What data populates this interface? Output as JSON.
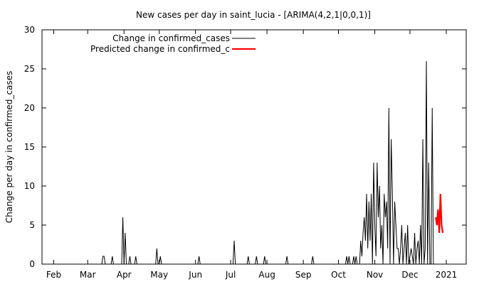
{
  "chart_data": {
    "type": "line",
    "title": "New cases per day in saint_lucia -  [ARIMA(4,2,1|0,0,1)]",
    "xlabel": "",
    "ylabel": "Change per day in confirmed_cases",
    "xlim": [
      "2020-01-22",
      "2021-01-18"
    ],
    "ylim": [
      0,
      30
    ],
    "y_ticks": [
      0,
      5,
      10,
      15,
      20,
      25,
      30
    ],
    "x_ticks": [
      {
        "date": "2020-02-01",
        "label": "Feb"
      },
      {
        "date": "2020-03-01",
        "label": "Mar"
      },
      {
        "date": "2020-04-01",
        "label": "Apr"
      },
      {
        "date": "2020-05-01",
        "label": "May"
      },
      {
        "date": "2020-06-01",
        "label": "Jun"
      },
      {
        "date": "2020-07-01",
        "label": "Jul"
      },
      {
        "date": "2020-08-01",
        "label": "Aug"
      },
      {
        "date": "2020-09-01",
        "label": "Sep"
      },
      {
        "date": "2020-10-01",
        "label": "Oct"
      },
      {
        "date": "2020-11-01",
        "label": "Nov"
      },
      {
        "date": "2020-12-01",
        "label": "Dec"
      },
      {
        "date": "2021-01-01",
        "label": "2021"
      }
    ],
    "grid": false,
    "legend_position": "top-left",
    "series": [
      {
        "name": "Change in confirmed_cases",
        "color": "#000000",
        "points": [
          [
            "2020-03-13",
            0
          ],
          [
            "2020-03-14",
            1
          ],
          [
            "2020-03-15",
            1
          ],
          [
            "2020-03-16",
            0
          ],
          [
            "2020-03-21",
            0
          ],
          [
            "2020-03-22",
            1
          ],
          [
            "2020-03-23",
            0
          ],
          [
            "2020-03-30",
            0
          ],
          [
            "2020-03-31",
            6
          ],
          [
            "2020-04-01",
            0
          ],
          [
            "2020-04-02",
            4
          ],
          [
            "2020-04-03",
            0
          ],
          [
            "2020-04-05",
            0
          ],
          [
            "2020-04-06",
            1
          ],
          [
            "2020-04-07",
            0
          ],
          [
            "2020-04-10",
            0
          ],
          [
            "2020-04-11",
            1
          ],
          [
            "2020-04-12",
            0
          ],
          [
            "2020-04-28",
            0
          ],
          [
            "2020-04-29",
            2
          ],
          [
            "2020-04-30",
            0
          ],
          [
            "2020-05-01",
            0
          ],
          [
            "2020-05-02",
            1
          ],
          [
            "2020-05-03",
            0
          ],
          [
            "2020-06-03",
            0
          ],
          [
            "2020-06-04",
            1
          ],
          [
            "2020-06-05",
            0
          ],
          [
            "2020-07-03",
            0
          ],
          [
            "2020-07-04",
            3
          ],
          [
            "2020-07-05",
            0
          ],
          [
            "2020-07-15",
            0
          ],
          [
            "2020-07-16",
            1
          ],
          [
            "2020-07-17",
            0
          ],
          [
            "2020-07-22",
            0
          ],
          [
            "2020-07-23",
            1
          ],
          [
            "2020-07-24",
            0
          ],
          [
            "2020-07-29",
            0
          ],
          [
            "2020-07-30",
            1
          ],
          [
            "2020-07-31",
            0
          ],
          [
            "2020-08-17",
            0
          ],
          [
            "2020-08-18",
            1
          ],
          [
            "2020-08-19",
            0
          ],
          [
            "2020-09-08",
            0
          ],
          [
            "2020-09-09",
            1
          ],
          [
            "2020-09-10",
            0
          ],
          [
            "2020-10-07",
            0
          ],
          [
            "2020-10-08",
            1
          ],
          [
            "2020-10-09",
            0
          ],
          [
            "2020-10-10",
            1
          ],
          [
            "2020-10-11",
            0
          ],
          [
            "2020-10-13",
            0
          ],
          [
            "2020-10-14",
            1
          ],
          [
            "2020-10-15",
            0
          ],
          [
            "2020-10-16",
            1
          ],
          [
            "2020-10-17",
            0
          ],
          [
            "2020-10-19",
            0
          ],
          [
            "2020-10-20",
            3
          ],
          [
            "2020-10-21",
            1
          ],
          [
            "2020-10-22",
            4
          ],
          [
            "2020-10-23",
            6
          ],
          [
            "2020-10-24",
            3
          ],
          [
            "2020-10-25",
            9
          ],
          [
            "2020-10-26",
            2
          ],
          [
            "2020-10-27",
            8
          ],
          [
            "2020-10-28",
            3
          ],
          [
            "2020-10-29",
            9
          ],
          [
            "2020-10-30",
            0
          ],
          [
            "2020-10-31",
            13
          ],
          [
            "2020-11-01",
            5
          ],
          [
            "2020-11-02",
            1
          ],
          [
            "2020-11-03",
            13
          ],
          [
            "2020-11-04",
            6
          ],
          [
            "2020-11-05",
            10
          ],
          [
            "2020-11-06",
            2
          ],
          [
            "2020-11-07",
            5
          ],
          [
            "2020-11-08",
            0
          ],
          [
            "2020-11-09",
            9
          ],
          [
            "2020-11-10",
            6
          ],
          [
            "2020-11-11",
            8
          ],
          [
            "2020-11-12",
            2
          ],
          [
            "2020-11-13",
            20
          ],
          [
            "2020-11-14",
            0
          ],
          [
            "2020-11-15",
            16
          ],
          [
            "2020-11-16",
            9
          ],
          [
            "2020-11-17",
            0
          ],
          [
            "2020-11-18",
            8
          ],
          [
            "2020-11-19",
            5
          ],
          [
            "2020-11-20",
            2
          ],
          [
            "2020-11-21",
            2
          ],
          [
            "2020-11-22",
            0
          ],
          [
            "2020-11-23",
            2
          ],
          [
            "2020-11-24",
            5
          ],
          [
            "2020-11-25",
            0
          ],
          [
            "2020-11-26",
            2
          ],
          [
            "2020-11-27",
            4
          ],
          [
            "2020-11-28",
            0
          ],
          [
            "2020-11-29",
            5
          ],
          [
            "2020-11-30",
            0
          ],
          [
            "2020-12-01",
            1
          ],
          [
            "2020-12-02",
            2
          ],
          [
            "2020-12-03",
            1
          ],
          [
            "2020-12-04",
            0
          ],
          [
            "2020-12-05",
            4
          ],
          [
            "2020-12-06",
            0
          ],
          [
            "2020-12-07",
            2
          ],
          [
            "2020-12-08",
            3
          ],
          [
            "2020-12-09",
            0
          ],
          [
            "2020-12-10",
            5
          ],
          [
            "2020-12-11",
            0
          ],
          [
            "2020-12-12",
            16
          ],
          [
            "2020-12-13",
            0
          ],
          [
            "2020-12-14",
            2
          ],
          [
            "2020-12-15",
            26
          ],
          [
            "2020-12-16",
            0
          ],
          [
            "2020-12-17",
            13
          ],
          [
            "2020-12-18",
            0
          ],
          [
            "2020-12-19",
            0
          ],
          [
            "2020-12-20",
            20
          ],
          [
            "2020-12-21",
            0
          ],
          [
            "2020-12-22",
            0
          ]
        ]
      },
      {
        "name": "Predicted change in confirmed_c",
        "color": "#ff0000",
        "points": [
          [
            "2020-12-23",
            6
          ],
          [
            "2020-12-24",
            5
          ],
          [
            "2020-12-25",
            7
          ],
          [
            "2020-12-26",
            4
          ],
          [
            "2020-12-27",
            9
          ],
          [
            "2020-12-28",
            5
          ],
          [
            "2020-12-29",
            4
          ]
        ]
      }
    ]
  }
}
